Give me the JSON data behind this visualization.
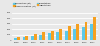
{
  "years": [
    "2008",
    "2009",
    "2010",
    "2011",
    "2012",
    "2013",
    "2014",
    "2015",
    "2016",
    "2017"
  ],
  "series1_values": [
    40,
    60,
    80,
    100,
    130,
    155,
    180,
    200,
    240,
    290
  ],
  "series2_values": [
    55,
    85,
    120,
    150,
    175,
    210,
    255,
    290,
    340,
    420
  ],
  "series1_color": "#5bc8e8",
  "series2_color": "#f5a020",
  "background_color": "#e8e8e8",
  "plot_bg_color": "#e8e8e8",
  "ylim": [
    0,
    500
  ],
  "yticks": [
    0,
    100,
    200,
    300,
    400,
    500
  ],
  "grid_color": "#ffffff",
  "bar_width": 0.35,
  "legend_series1": "Production (kt)",
  "legend_series2": "Consommation (kt)",
  "legend_series3": "Exportation",
  "legend_series4": "Importation",
  "series3_color": "#5bc8e8",
  "series4_color": "#f5a020"
}
